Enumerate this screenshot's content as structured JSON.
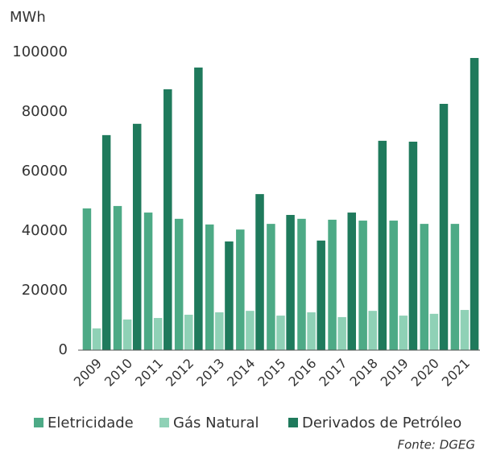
{
  "chart_data": {
    "type": "bar",
    "y_label": "MWh",
    "source": "Fonte: DGEG",
    "categories": [
      "2009",
      "2010",
      "2011",
      "2012",
      "2013",
      "2014",
      "2015",
      "2016",
      "2017",
      "2018",
      "2019",
      "2020",
      "2021"
    ],
    "series": [
      {
        "name": "Eletricidade",
        "color": "#4daa86",
        "values": [
          47600,
          48400,
          46200,
          44100,
          42200,
          40500,
          42400,
          44100,
          43800,
          43500,
          43500,
          42400,
          42400
        ]
      },
      {
        "name": "Gás Natural",
        "color": "#8fd1b6",
        "values": [
          7300,
          10300,
          10800,
          11900,
          12700,
          13200,
          11600,
          12700,
          11100,
          13200,
          11600,
          12200,
          13500
        ]
      },
      {
        "name": "Derivados de Petróleo",
        "color": "#1f7a5c",
        "values": [
          72200,
          76000,
          87600,
          94900,
          36500,
          52400,
          45400,
          36800,
          46200,
          70300,
          70000,
          82700,
          98100
        ]
      }
    ],
    "ylim": [
      0,
      100000
    ],
    "yticks": [
      0,
      20000,
      40000,
      60000,
      80000,
      100000
    ],
    "grid": false
  }
}
